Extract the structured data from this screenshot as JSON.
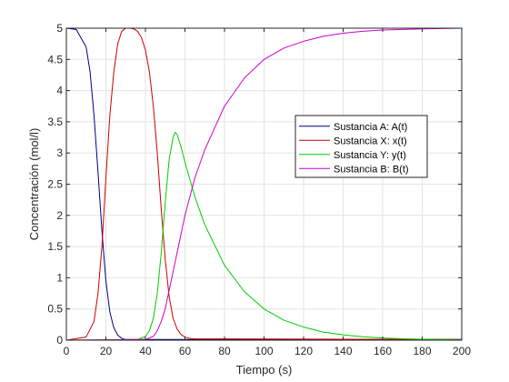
{
  "chart_data": {
    "type": "line",
    "title": "",
    "xlabel": "Tiempo (s)",
    "ylabel": "Concentración (mol/l)",
    "xlim": [
      0,
      200
    ],
    "ylim": [
      0,
      5
    ],
    "xticks": [
      0,
      20,
      40,
      60,
      80,
      100,
      120,
      140,
      160,
      180,
      200
    ],
    "yticks": [
      0,
      0.5,
      1,
      1.5,
      2,
      2.5,
      3,
      3.5,
      4,
      4.5,
      5
    ],
    "xtick_labels": [
      "0",
      "20",
      "40",
      "60",
      "80",
      "100",
      "120",
      "140",
      "160",
      "180",
      "200"
    ],
    "ytick_labels": [
      "0",
      "0.5",
      "1",
      "1.5",
      "2",
      "2.5",
      "3",
      "3.5",
      "4",
      "4.5",
      "5"
    ],
    "grid": true,
    "legend_position": "right",
    "series": [
      {
        "name": "Sustancia A: A(t)",
        "color": "#000080",
        "x": [
          0,
          5,
          10,
          12,
          14,
          16,
          18,
          20,
          22,
          24,
          26,
          28,
          30,
          35,
          40,
          60,
          200
        ],
        "y": [
          5,
          4.98,
          4.7,
          4.3,
          3.6,
          2.7,
          1.75,
          0.95,
          0.45,
          0.2,
          0.08,
          0.03,
          0.01,
          0.01,
          0.01,
          0.01,
          0.01
        ]
      },
      {
        "name": "Sustancia X: x(t)",
        "color": "#cc0000",
        "x": [
          0,
          10,
          14,
          16,
          18,
          20,
          22,
          24,
          26,
          28,
          30,
          32,
          34,
          36,
          38,
          40,
          42,
          44,
          46,
          48,
          50,
          52,
          54,
          56,
          58,
          60,
          62,
          65,
          70,
          80,
          200
        ],
        "y": [
          0,
          0.05,
          0.3,
          0.75,
          1.5,
          2.6,
          3.6,
          4.3,
          4.75,
          4.95,
          5.0,
          5.0,
          4.99,
          4.95,
          4.85,
          4.65,
          4.3,
          3.75,
          3.0,
          2.1,
          1.3,
          0.7,
          0.35,
          0.18,
          0.09,
          0.05,
          0.03,
          0.02,
          0.02,
          0.02,
          0.01
        ]
      },
      {
        "name": "Sustancia Y: y(t)",
        "color": "#00cc00",
        "x": [
          0,
          36,
          40,
          42,
          44,
          46,
          48,
          50,
          52,
          54,
          55,
          56,
          58,
          60,
          65,
          70,
          80,
          90,
          100,
          110,
          120,
          130,
          140,
          150,
          160,
          170,
          180,
          190,
          200
        ],
        "y": [
          0,
          0.01,
          0.06,
          0.15,
          0.35,
          0.75,
          1.4,
          2.2,
          2.9,
          3.25,
          3.33,
          3.3,
          3.1,
          2.85,
          2.3,
          1.85,
          1.2,
          0.78,
          0.5,
          0.32,
          0.21,
          0.13,
          0.085,
          0.055,
          0.035,
          0.022,
          0.014,
          0.009,
          0.006
        ]
      },
      {
        "name": "Sustancia B: B(t)",
        "color": "#cc00cc",
        "x": [
          0,
          40,
          44,
          46,
          48,
          50,
          52,
          54,
          56,
          58,
          60,
          65,
          70,
          80,
          90,
          100,
          110,
          120,
          130,
          140,
          150,
          160,
          170,
          180,
          190,
          200
        ],
        "y": [
          0,
          0.01,
          0.06,
          0.15,
          0.3,
          0.5,
          0.8,
          1.1,
          1.4,
          1.7,
          2.0,
          2.6,
          3.05,
          3.75,
          4.2,
          4.5,
          4.68,
          4.79,
          4.87,
          4.92,
          4.95,
          4.97,
          4.98,
          4.99,
          4.995,
          5.0
        ]
      }
    ]
  }
}
